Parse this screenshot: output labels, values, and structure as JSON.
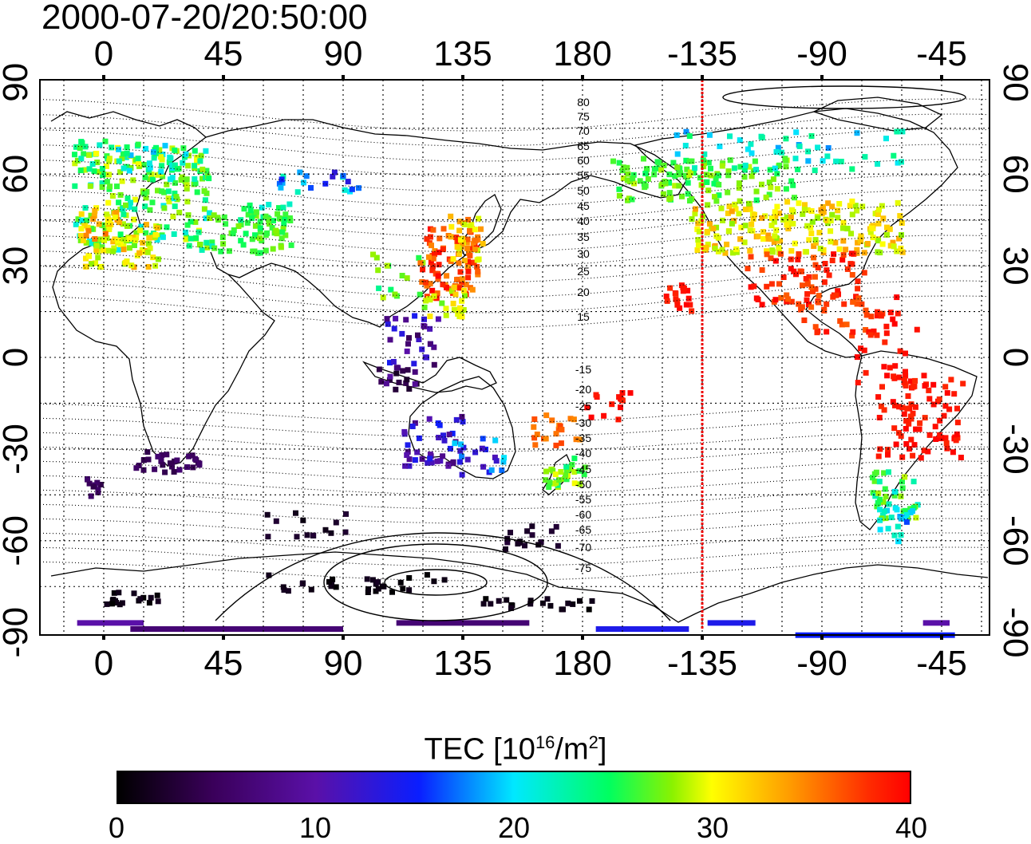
{
  "title": "2000-07-20/20:50:00",
  "axes": {
    "top_x_ticks": [
      "0",
      "45",
      "90",
      "135",
      "180",
      "-135",
      "-90",
      "-45"
    ],
    "bottom_x_ticks": [
      "0",
      "45",
      "90",
      "135",
      "180",
      "-135",
      "-90",
      "-45"
    ],
    "y_ticks": [
      "90",
      "60",
      "30",
      "0",
      "-30",
      "-60",
      "-90"
    ]
  },
  "contour_labels": [
    "80",
    "75",
    "70",
    "65",
    "60",
    "55",
    "50",
    "45",
    "40",
    "35",
    "30",
    "25",
    "20",
    "15",
    "-15",
    "-20",
    "-25",
    "-30",
    "-35",
    "-40",
    "-45",
    "-50",
    "-55",
    "-60",
    "-65",
    "-70",
    "-75"
  ],
  "terminator_longitude": -135,
  "colorbar": {
    "title_prefix": "TEC  [10",
    "title_exp1": "16",
    "title_mid": "/m",
    "title_exp2": "2",
    "title_suffix": "]",
    "ticks": [
      "0",
      "10",
      "20",
      "30",
      "40"
    ],
    "range": [
      0,
      40
    ]
  },
  "colors": {
    "terminator": "#ee0000",
    "scale": [
      "#000000",
      "#5a10a8",
      "#0a1eff",
      "#00e8ff",
      "#00ff60",
      "#ffff00",
      "#ff9a00",
      "#ff0000"
    ]
  }
}
